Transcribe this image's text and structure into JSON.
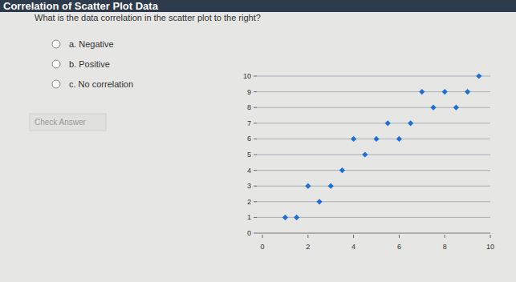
{
  "header": {
    "title": "Correlation of Scatter Plot Data"
  },
  "question": "What is the data correlation in the scatter plot to the right?",
  "options": [
    "a. Negative",
    "b. Positive",
    "c. No correlation"
  ],
  "button": "Check Answer",
  "chart_data": {
    "type": "scatter",
    "x": [
      1,
      1.5,
      2,
      3,
      2.5,
      3.5,
      4,
      5,
      6,
      4.5,
      5.5,
      6.5,
      7.5,
      8.5,
      7,
      8,
      9,
      9.5
    ],
    "values": [
      1,
      1,
      3,
      3,
      2,
      4,
      6,
      6,
      6,
      5,
      7,
      7,
      8,
      8,
      9,
      9,
      9,
      10
    ],
    "color": "#1f6fd6",
    "marker": "diamond",
    "xlim": [
      0,
      10
    ],
    "ylim": [
      0,
      10
    ],
    "xticks": [
      0,
      2,
      4,
      6,
      8,
      10
    ],
    "yticks": [
      0,
      1,
      2,
      3,
      4,
      5,
      6,
      7,
      8,
      9,
      10
    ],
    "grid": true
  }
}
